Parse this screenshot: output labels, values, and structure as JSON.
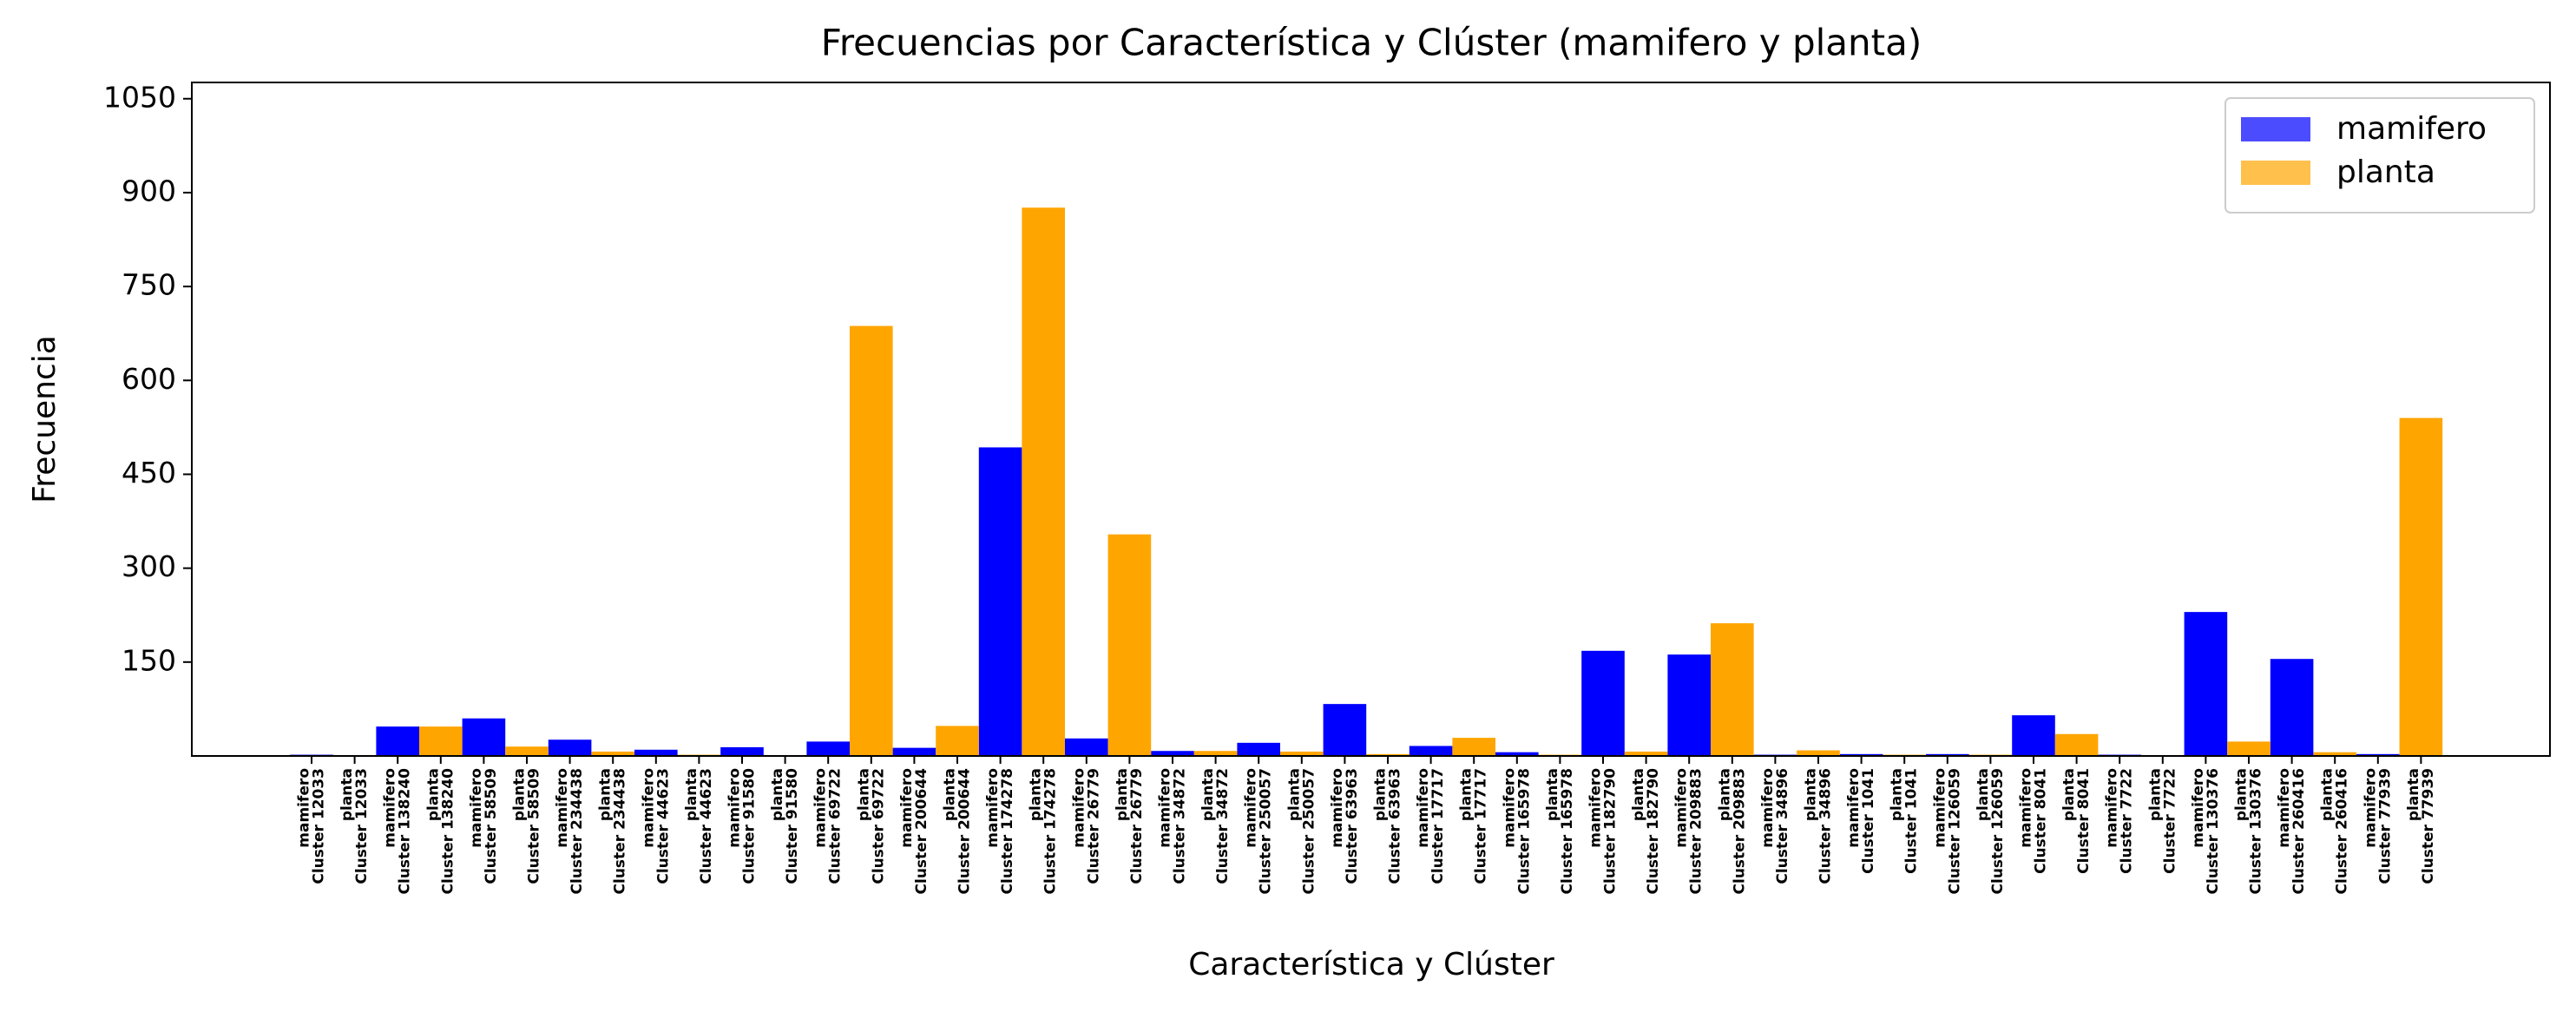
{
  "chart_data": {
    "type": "bar",
    "title": "Frecuencias por Característica y Clúster (mamifero y planta)",
    "xlabel": "Característica y Clúster",
    "ylabel": "Frecuencia",
    "categories": [
      [
        "mamifero",
        "Cluster 12033"
      ],
      [
        "planta",
        "Cluster 12033"
      ],
      [
        "mamifero",
        "Cluster 138240"
      ],
      [
        "planta",
        "Cluster 138240"
      ],
      [
        "mamifero",
        "Cluster 58509"
      ],
      [
        "planta",
        "Cluster 58509"
      ],
      [
        "mamifero",
        "Cluster 234438"
      ],
      [
        "planta",
        "Cluster 234438"
      ],
      [
        "mamifero",
        "Cluster 44623"
      ],
      [
        "planta",
        "Cluster 44623"
      ],
      [
        "mamifero",
        "Cluster 91580"
      ],
      [
        "planta",
        "Cluster 91580"
      ],
      [
        "mamifero",
        "Cluster 69722"
      ],
      [
        "planta",
        "Cluster 69722"
      ],
      [
        "mamifero",
        "Cluster 200644"
      ],
      [
        "planta",
        "Cluster 200644"
      ],
      [
        "mamifero",
        "Cluster 174278"
      ],
      [
        "planta",
        "Cluster 174278"
      ],
      [
        "mamifero",
        "Cluster 26779"
      ],
      [
        "planta",
        "Cluster 26779"
      ],
      [
        "mamifero",
        "Cluster 34872"
      ],
      [
        "planta",
        "Cluster 34872"
      ],
      [
        "mamifero",
        "Cluster 250057"
      ],
      [
        "planta",
        "Cluster 250057"
      ],
      [
        "mamifero",
        "Cluster 63963"
      ],
      [
        "planta",
        "Cluster 63963"
      ],
      [
        "mamifero",
        "Cluster 17717"
      ],
      [
        "planta",
        "Cluster 17717"
      ],
      [
        "mamifero",
        "Cluster 165978"
      ],
      [
        "planta",
        "Cluster 165978"
      ],
      [
        "mamifero",
        "Cluster 182790"
      ],
      [
        "planta",
        "Cluster 182790"
      ],
      [
        "mamifero",
        "Cluster 209883"
      ],
      [
        "planta",
        "Cluster 209883"
      ],
      [
        "mamifero",
        "Cluster 34896"
      ],
      [
        "planta",
        "Cluster 34896"
      ],
      [
        "mamifero",
        "Cluster 1041"
      ],
      [
        "planta",
        "Cluster 1041"
      ],
      [
        "mamifero",
        "Cluster 126059"
      ],
      [
        "planta",
        "Cluster 126059"
      ],
      [
        "mamifero",
        "Cluster 8041"
      ],
      [
        "planta",
        "Cluster 8041"
      ],
      [
        "mamifero",
        "Cluster 7722"
      ],
      [
        "planta",
        "Cluster 7722"
      ],
      [
        "mamifero",
        "Cluster 130376"
      ],
      [
        "planta",
        "Cluster 130376"
      ],
      [
        "mamifero",
        "Cluster 260416"
      ],
      [
        "planta",
        "Cluster 260416"
      ],
      [
        "mamifero",
        "Cluster 77939"
      ],
      [
        "planta",
        "Cluster 77939"
      ]
    ],
    "series": [
      {
        "name": "mamifero",
        "color": "#0000ff",
        "values": [
          2,
          null,
          47,
          null,
          60,
          null,
          26,
          null,
          10,
          null,
          14,
          null,
          23,
          null,
          13,
          null,
          493,
          null,
          28,
          null,
          8,
          null,
          21,
          null,
          83,
          null,
          16,
          null,
          6,
          null,
          168,
          null,
          162,
          null,
          2,
          null,
          3,
          null,
          3,
          null,
          65,
          null,
          2,
          null,
          230,
          null,
          155,
          null,
          3,
          null
        ]
      },
      {
        "name": "planta",
        "color": "#ffa500",
        "values": [
          null,
          1,
          null,
          47,
          null,
          15,
          null,
          7,
          null,
          2,
          null,
          0,
          null,
          687,
          null,
          48,
          null,
          876,
          null,
          354,
          null,
          8,
          null,
          7,
          null,
          3,
          null,
          29,
          null,
          2,
          null,
          7,
          null,
          212,
          null,
          9,
          null,
          2,
          null,
          2,
          null,
          35,
          null,
          1,
          null,
          23,
          null,
          6,
          null,
          540
        ]
      }
    ],
    "ylim": [
      0,
      1076
    ],
    "yticks": [
      150,
      300,
      450,
      600,
      750,
      900,
      1050
    ],
    "legend": "upper right"
  }
}
